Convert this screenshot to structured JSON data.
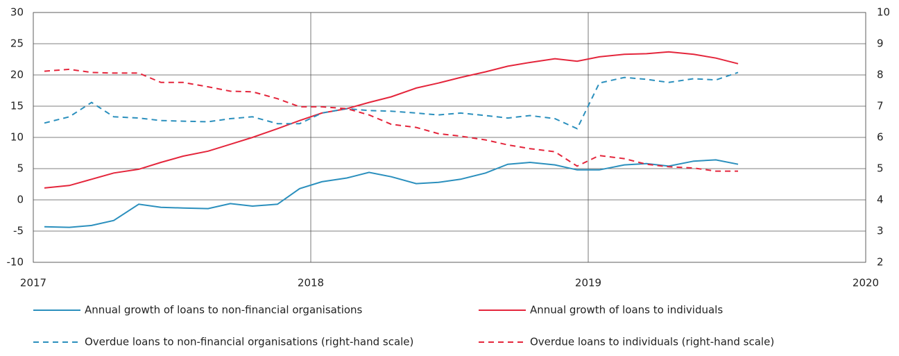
{
  "chart_data": {
    "type": "line",
    "x": [
      2017.04,
      2017.13,
      2017.21,
      2017.29,
      2017.38,
      2017.46,
      2017.54,
      2017.63,
      2017.71,
      2017.79,
      2017.88,
      2017.96,
      2018.04,
      2018.13,
      2018.21,
      2018.29,
      2018.38,
      2018.46,
      2018.54,
      2018.63,
      2018.71,
      2018.79,
      2018.88,
      2018.96,
      2019.04,
      2019.13,
      2019.21,
      2019.29,
      2019.38,
      2019.46,
      2019.54
    ],
    "xlim": [
      2017,
      2020
    ],
    "xticks": [
      2017,
      2018,
      2019,
      2020
    ],
    "ylim": [
      -10,
      30
    ],
    "yticks": [
      -10,
      -5,
      0,
      5,
      10,
      15,
      20,
      25,
      30
    ],
    "y2lim": [
      2,
      10
    ],
    "y2ticks": [
      2,
      3,
      4,
      5,
      6,
      7,
      8,
      9,
      10
    ],
    "grid": true,
    "series": [
      {
        "name": "Annual growth of loans to non-financial organisations",
        "color": "#2a8fbd",
        "line_style": "solid",
        "values": [
          -4.3,
          -4.4,
          -4.1,
          -3.3,
          -0.7,
          -1.2,
          -1.3,
          -1.4,
          -0.6,
          -1.0,
          -0.7,
          1.8,
          2.9,
          3.5,
          4.4,
          3.7,
          2.6,
          2.8,
          3.3,
          4.3,
          5.7,
          6.0,
          5.6,
          4.8,
          4.8,
          5.6,
          5.8,
          5.4,
          6.2,
          6.4,
          5.7
        ]
      },
      {
        "name": "Annual growth of loans to individuals",
        "color": "#e4253b",
        "line_style": "solid",
        "values": [
          1.9,
          2.3,
          3.3,
          4.3,
          4.9,
          6.0,
          7.0,
          7.8,
          8.9,
          10.0,
          11.4,
          12.7,
          13.9,
          14.6,
          15.6,
          16.5,
          17.9,
          18.7,
          19.6,
          20.5,
          21.4,
          22.0,
          22.6,
          22.2,
          22.9,
          23.3,
          23.4,
          23.7,
          23.3,
          22.7,
          21.8
        ]
      },
      {
        "name": "Overdue loans to non-financial organisations (right-hand scale)",
        "color": "#2a8fbd",
        "line_style": "dashed",
        "axis": "y2",
        "values": [
          6.46,
          6.66,
          7.12,
          6.66,
          6.62,
          6.54,
          6.52,
          6.5,
          6.6,
          6.66,
          6.44,
          6.44,
          6.78,
          6.92,
          6.86,
          6.84,
          6.78,
          6.72,
          6.78,
          6.7,
          6.62,
          6.7,
          6.6,
          6.28,
          7.74,
          7.92,
          7.86,
          7.76,
          7.88,
          7.84,
          8.08
        ]
      },
      {
        "name": "Overdue loans to individuals (right-hand scale)",
        "color": "#e4253b",
        "line_style": "dashed",
        "axis": "y2",
        "values": [
          8.12,
          8.18,
          8.08,
          8.06,
          8.06,
          7.76,
          7.76,
          7.62,
          7.48,
          7.46,
          7.24,
          6.98,
          6.98,
          6.92,
          6.72,
          6.42,
          6.32,
          6.12,
          6.04,
          5.92,
          5.76,
          5.64,
          5.54,
          5.08,
          5.42,
          5.32,
          5.14,
          5.06,
          5.02,
          4.92,
          4.92
        ]
      }
    ]
  }
}
